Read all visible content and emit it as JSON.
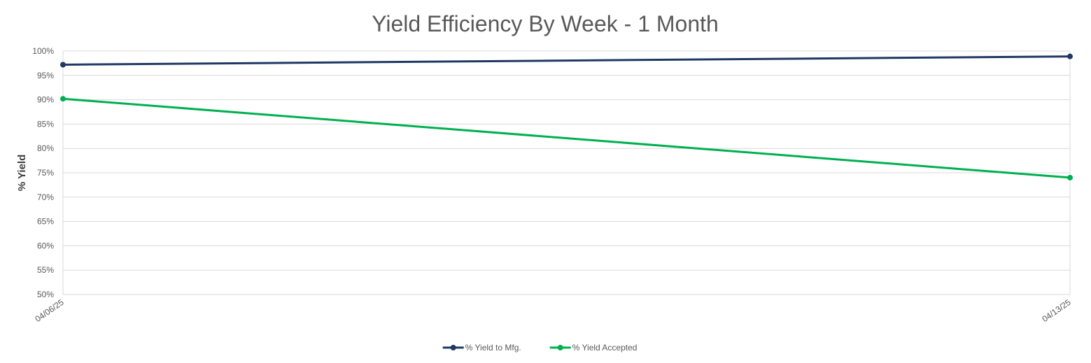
{
  "chart_data": {
    "type": "line",
    "title": "Yield Efficiency By Week - 1 Month",
    "ylabel": "% Yield",
    "xlabel": "",
    "categories": [
      "04/06/25",
      "04/13/25"
    ],
    "ylim": [
      50,
      100
    ],
    "ytick_step": 5,
    "y_unit": "%",
    "grid": true,
    "legend_position": "bottom",
    "series": [
      {
        "name": "% Yield to Mfg.",
        "values": [
          97.2,
          98.9
        ],
        "color": "#1f3864"
      },
      {
        "name": "% Yield Accepted",
        "values": [
          90.2,
          74.0
        ],
        "color": "#00b050"
      }
    ]
  }
}
